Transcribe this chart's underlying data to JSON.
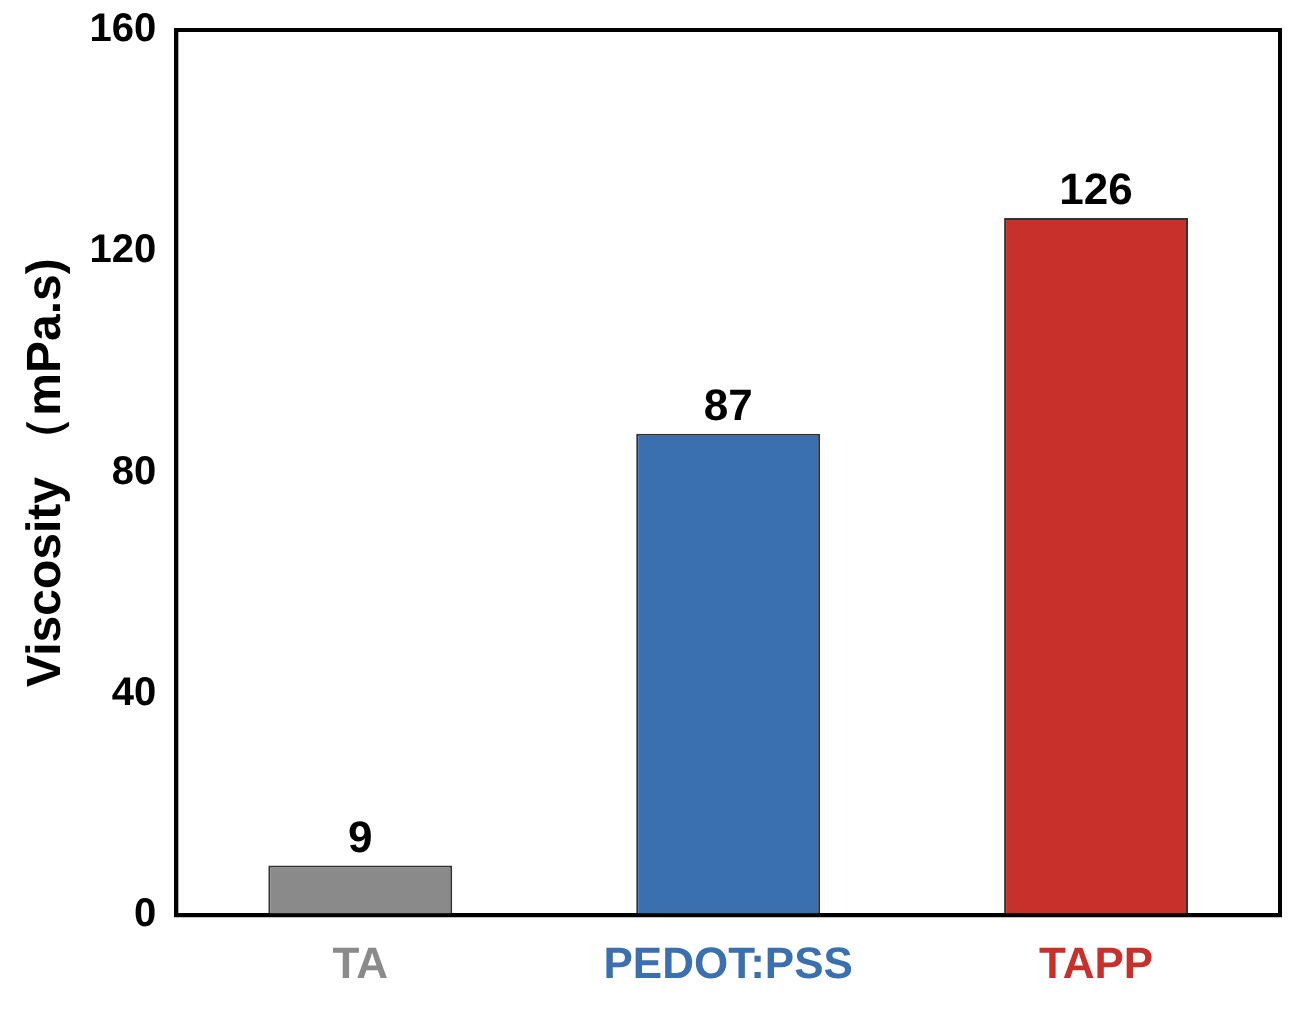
{
  "chart_data": {
    "type": "bar",
    "ylabel": "Viscosity （mPa.s)",
    "categories": [
      "TA",
      "PEDOT:PSS",
      "TAPP"
    ],
    "values": [
      9,
      87,
      126
    ],
    "colors": [
      "#8a8a8a",
      "#3a6fb0",
      "#c8302c"
    ],
    "ylim": [
      0,
      160
    ],
    "yticks": [
      0,
      40,
      80,
      120,
      160
    ],
    "data_labels": true,
    "grid": false,
    "legend": false
  }
}
